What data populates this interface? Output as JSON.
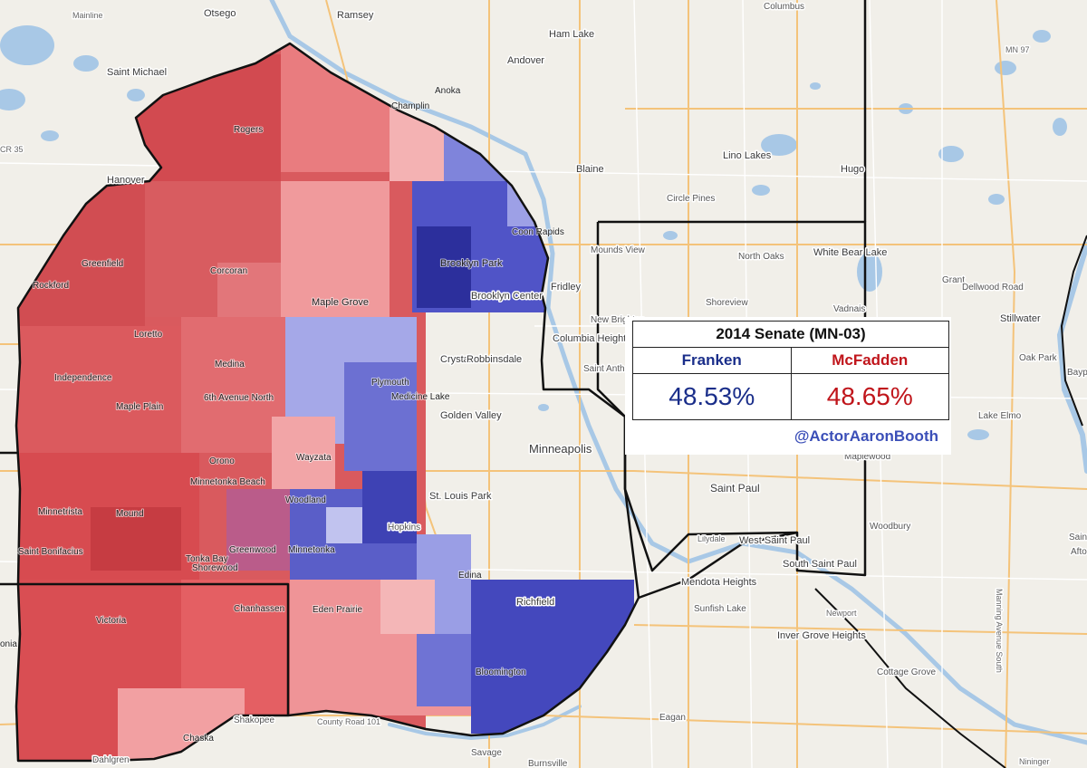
{
  "results": {
    "title": "2014 Senate (MN-03)",
    "candidates": [
      {
        "name": "Franken",
        "pct": "48.53%",
        "color": "#1a2e8a"
      },
      {
        "name": "McFadden",
        "pct": "48.65%",
        "color": "#c0151b"
      }
    ],
    "credit": "@ActorAaronBooth"
  },
  "colors": {
    "republican_strong": "#d64a4f",
    "republican_lean": "#f4a3a5",
    "democrat_strong": "#3b3fb8",
    "democrat_lean": "#a9aceb",
    "district_border": "#111111",
    "water": "#a8c8e6"
  },
  "places": {
    "otsego": "Otsego",
    "ramsey": "Ramsey",
    "ham_lake": "Ham Lake",
    "andover": "Andover",
    "columbus": "Columbus",
    "saint_michael": "Saint Michael",
    "anoka": "Anoka",
    "champlin": "Champlin",
    "rogers": "Rogers",
    "hanover": "Hanover",
    "blaine": "Blaine",
    "lino_lakes": "Lino Lakes",
    "hugo": "Hugo",
    "circle_pines": "Circle Pines",
    "coon_rapids": "Coon Rapids",
    "mounds_view": "Mounds View",
    "north_oaks": "North Oaks",
    "white_bear_lake": "White Bear Lake",
    "grant": "Grant",
    "dellwood_road": "Dellwood Road",
    "greenfield": "Greenfield",
    "corcoran": "Corcoran",
    "brooklyn_park": "Brooklyn Park",
    "brooklyn_center": "Brooklyn Center",
    "fridley": "Fridley",
    "shoreview": "Shoreview",
    "vadnais": "Vadnais",
    "rockford": "Rockford",
    "maple_grove": "Maple Grove",
    "new_brighton": "New Brighton",
    "columbia_heights": "Columbia Heights",
    "stillwater": "Stillwater",
    "loretto": "Loretto",
    "medina": "Medina",
    "independence": "Independence",
    "crystal": "Crystal",
    "robbinsdale": "Robbinsdale",
    "saint_anthony": "Saint Anth",
    "oak_park": "Oak Park",
    "bayport": "Bayp",
    "maple_plain": "Maple Plain",
    "sixth_avenue": "6th Avenue North",
    "plymouth": "Plymouth",
    "medicine_lake": "Medicine Lake",
    "golden_valley": "Golden Valley",
    "lake_elmo": "Lake Elmo",
    "orono": "Orono",
    "wayzata": "Wayzata",
    "minneapolis": "Minneapolis",
    "maplewood": "Maplewood",
    "minnetonka_beach": "Minnetonka Beach",
    "woodland": "Woodland",
    "st_louis_park": "St. Louis Park",
    "saint_paul": "Saint Paul",
    "minnetrista": "Minnetrista",
    "mound": "Mound",
    "hopkins": "Hopkins",
    "woodbury": "Woodbury",
    "saint_bonifacius": "Saint Bonifacius",
    "tonka_bay": "Tonka Bay",
    "greenwood": "Greenwood",
    "shorewood": "Shorewood",
    "minnetonka": "Minnetonka",
    "lilydale": "Lilydale",
    "west_saint_paul": "West Saint Paul",
    "south_saint_paul": "South Saint Paul",
    "saint_partial": "Saint",
    "afton_partial": "Afto",
    "edina": "Edina",
    "mendota_heights": "Mendota Heights",
    "richfield": "Richfield",
    "sunfish_lake": "Sunfish Lake",
    "newport": "Newport",
    "manning_avenue": "Manning Avenue South",
    "victoria": "Victoria",
    "chanhassen": "Chanhassen",
    "eden_prairie": "Eden Prairie",
    "inver_grove_heights": "Inver Grove Heights",
    "bloomington": "Bloomington",
    "cottage_grove": "Cottage Grove",
    "waconia_partial": "onia",
    "eagan": "Eagan",
    "chaska": "Chaska",
    "shakopee": "Shakopee",
    "county_road_101": "County Road 101",
    "dahlgren": "Dahlgren",
    "savage": "Savage",
    "burnsville": "Burnsville",
    "nininger": "Nininger",
    "mainline": "Mainline",
    "mn97": "MN 97",
    "cr35": "CR 35"
  }
}
